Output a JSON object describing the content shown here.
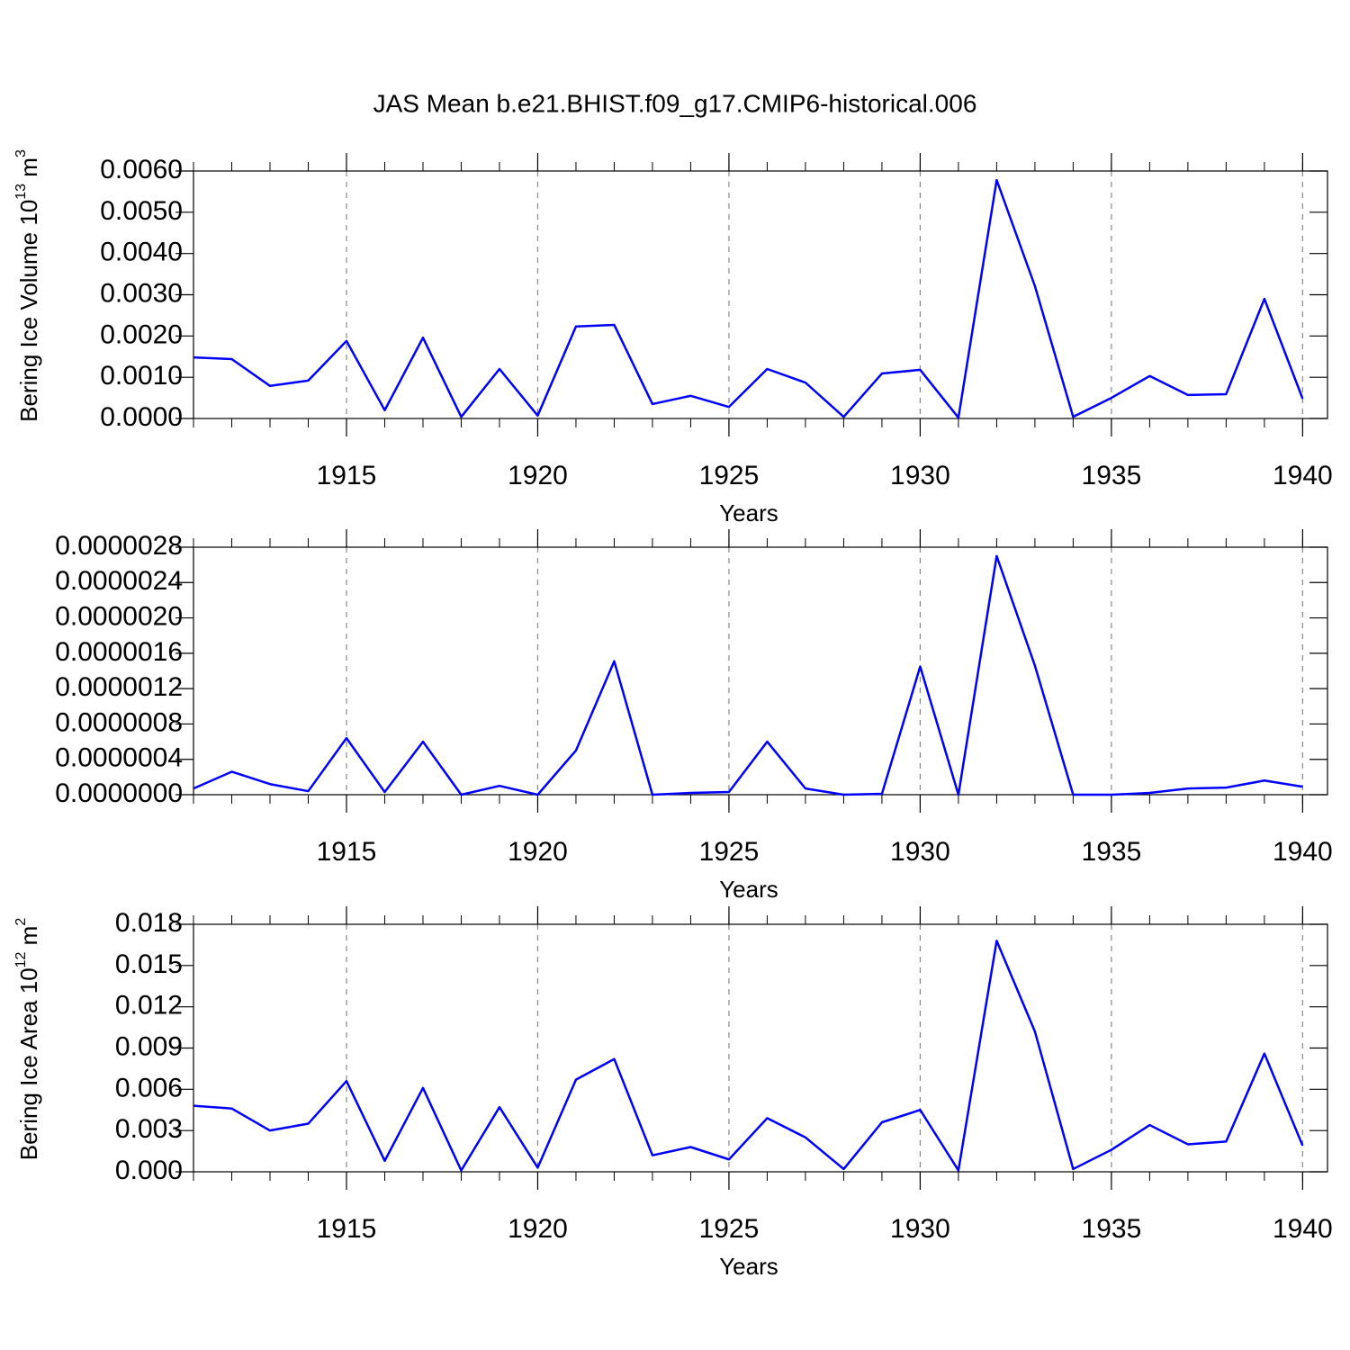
{
  "chart_data": [
    {
      "type": "line",
      "title": "JAS Mean b.e21.BHIST.f09_g17.CMIP6-historical.006",
      "ylabel": [
        "Bering Ice Volume 10",
        "13",
        " m",
        "3"
      ],
      "xlabel": "Years",
      "x": [
        1911,
        1912,
        1913,
        1914,
        1915,
        1916,
        1917,
        1918,
        1919,
        1920,
        1921,
        1922,
        1923,
        1924,
        1925,
        1926,
        1927,
        1928,
        1929,
        1930,
        1931,
        1932,
        1933,
        1934,
        1935,
        1936,
        1937,
        1938,
        1939,
        1940
      ],
      "series": [
        {
          "color": "#0000ff",
          "values": [
            0.00148,
            0.00144,
            0.00079,
            0.00092,
            0.00188,
            0.0002,
            0.00196,
            4e-05,
            0.0012,
            7e-05,
            0.00223,
            0.00227,
            0.00035,
            0.00055,
            0.00028,
            0.0012,
            0.00087,
            4e-05,
            0.00109,
            0.00118,
            2e-05,
            0.00578,
            0.00321,
            4e-05,
            0.0005,
            0.00103,
            0.00057,
            0.00059,
            0.0029,
            0.00048
          ]
        }
      ],
      "xlim": [
        1911,
        1940.65
      ],
      "xticks": [
        1915,
        1920,
        1925,
        1930,
        1935,
        1940
      ],
      "ylim": [
        0,
        0.006
      ],
      "yticks": [
        {
          "value": 0,
          "label": "0.0000"
        },
        {
          "value": 0.001,
          "label": "0.0010"
        },
        {
          "value": 0.002,
          "label": "0.0020"
        },
        {
          "value": 0.003,
          "label": "0.0030"
        },
        {
          "value": 0.004,
          "label": "0.0040"
        },
        {
          "value": 0.005,
          "label": "0.0050"
        },
        {
          "value": 0.006,
          "label": "0.0060"
        }
      ],
      "grid": true
    },
    {
      "type": "line",
      "xlabel": "Years",
      "x": [
        1911,
        1912,
        1913,
        1914,
        1915,
        1916,
        1917,
        1918,
        1919,
        1920,
        1921,
        1922,
        1923,
        1924,
        1925,
        1926,
        1927,
        1928,
        1929,
        1930,
        1931,
        1932,
        1933,
        1934,
        1935,
        1936,
        1937,
        1938,
        1939,
        1940
      ],
      "series": [
        {
          "color": "#0000ff",
          "values": [
            7e-08,
            2.6e-07,
            1.2e-07,
            4e-08,
            6.4e-07,
            3e-08,
            6e-07,
            0,
            1e-07,
            0,
            5e-07,
            1.51e-06,
            0,
            2e-08,
            3e-08,
            6e-07,
            7e-08,
            0,
            1e-08,
            1.45e-06,
            0,
            2.7e-06,
            1.46e-06,
            0,
            0,
            2e-08,
            7e-08,
            8e-08,
            1.6e-07,
            9e-08
          ]
        }
      ],
      "xlim": [
        1911,
        1940.65
      ],
      "xticks": [
        1915,
        1920,
        1925,
        1930,
        1935,
        1940
      ],
      "ylim": [
        0,
        2.8e-06
      ],
      "yticks": [
        {
          "value": 0,
          "label": "0.0000000"
        },
        {
          "value": 4e-07,
          "label": "0.0000004"
        },
        {
          "value": 8e-07,
          "label": "0.0000008"
        },
        {
          "value": 1.2e-06,
          "label": "0.0000012"
        },
        {
          "value": 1.6e-06,
          "label": "0.0000016"
        },
        {
          "value": 2e-06,
          "label": "0.0000020"
        },
        {
          "value": 2.4e-06,
          "label": "0.0000024"
        },
        {
          "value": 2.8e-06,
          "label": "0.0000028"
        }
      ],
      "grid": true
    },
    {
      "type": "line",
      "ylabel": [
        "Bering Ice Area 10",
        "12",
        " m",
        "2"
      ],
      "xlabel": "Years",
      "x": [
        1911,
        1912,
        1913,
        1914,
        1915,
        1916,
        1917,
        1918,
        1919,
        1920,
        1921,
        1922,
        1923,
        1924,
        1925,
        1926,
        1927,
        1928,
        1929,
        1930,
        1931,
        1932,
        1933,
        1934,
        1935,
        1936,
        1937,
        1938,
        1939,
        1940
      ],
      "series": [
        {
          "color": "#0000ff",
          "values": [
            0.0048,
            0.0046,
            0.003,
            0.0035,
            0.0066,
            0.0008,
            0.0061,
            0.0001,
            0.0047,
            0.0003,
            0.0067,
            0.0082,
            0.0012,
            0.0018,
            0.0009,
            0.0039,
            0.0025,
            0.0002,
            0.0036,
            0.0045,
            0.0001,
            0.0168,
            0.0102,
            0.0002,
            0.0016,
            0.0034,
            0.002,
            0.0022,
            0.0086,
            0.0019
          ]
        }
      ],
      "xlim": [
        1911,
        1940.65
      ],
      "xticks": [
        1915,
        1920,
        1925,
        1930,
        1935,
        1940
      ],
      "ylim": [
        0,
        0.018
      ],
      "yticks": [
        {
          "value": 0,
          "label": "0.000"
        },
        {
          "value": 0.003,
          "label": "0.003"
        },
        {
          "value": 0.006,
          "label": "0.006"
        },
        {
          "value": 0.009,
          "label": "0.009"
        },
        {
          "value": 0.012,
          "label": "0.012"
        },
        {
          "value": 0.015,
          "label": "0.015"
        },
        {
          "value": 0.018,
          "label": "0.018"
        }
      ],
      "grid": true
    }
  ]
}
